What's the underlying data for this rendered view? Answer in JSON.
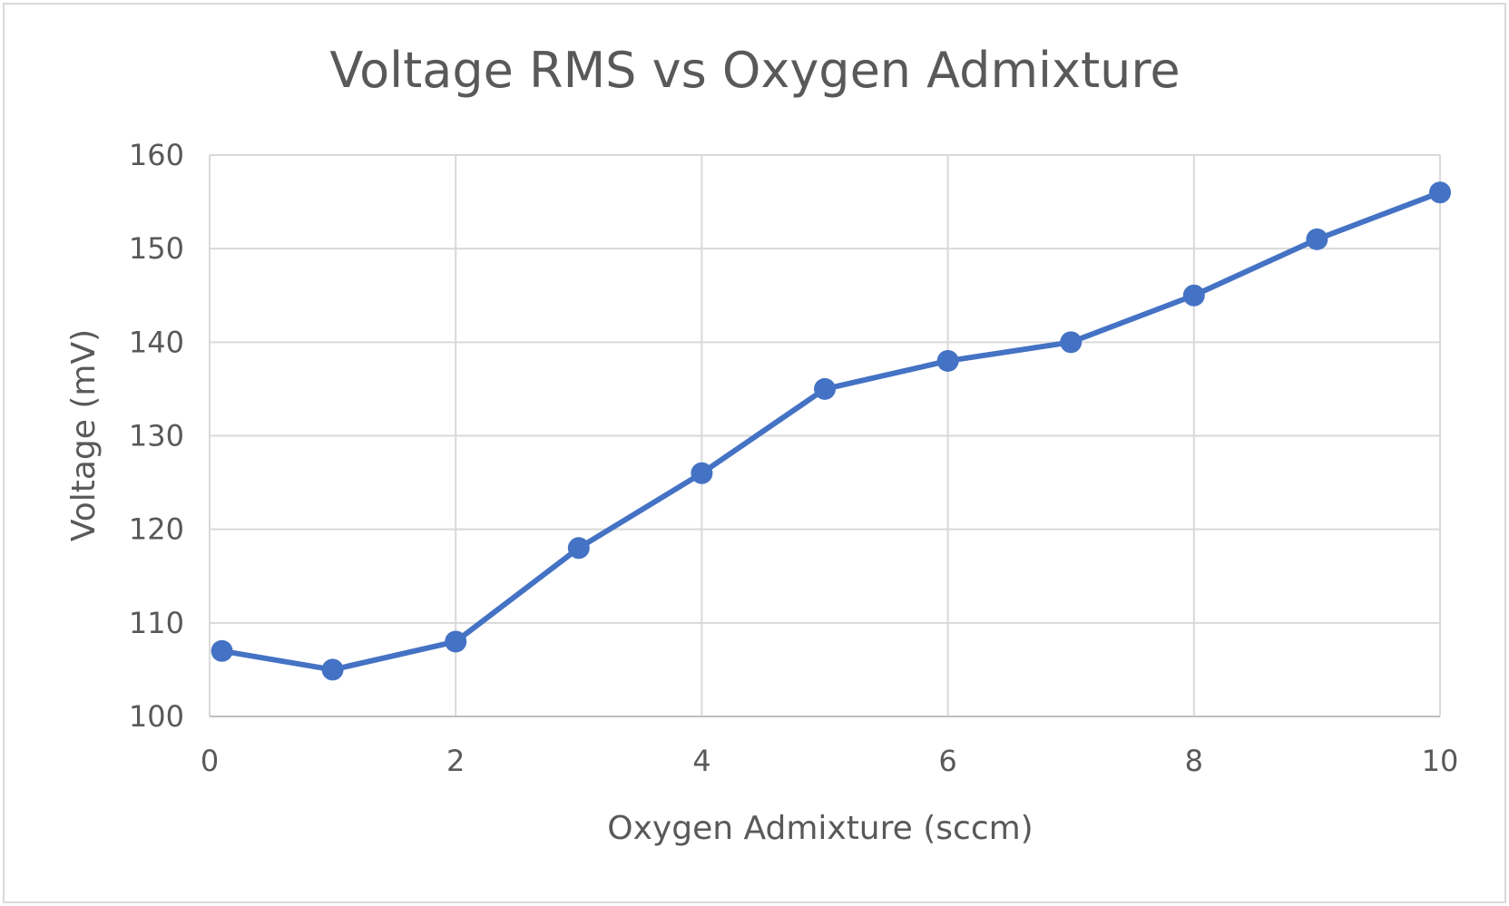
{
  "chart_data": {
    "type": "line",
    "title": "Voltage RMS vs Oxygen Admixture",
    "xlabel": "Oxygen Admixture (sccm)",
    "ylabel": "Voltage (mV)",
    "xlim": [
      0,
      10
    ],
    "ylim": [
      100,
      160
    ],
    "x_ticks": [
      0,
      2,
      4,
      6,
      8,
      10
    ],
    "y_ticks": [
      100,
      110,
      120,
      130,
      140,
      150,
      160
    ],
    "grid": true,
    "legend": "none",
    "series": [
      {
        "color": "#4472C4",
        "points": [
          {
            "x": 0.1,
            "y": 107
          },
          {
            "x": 1,
            "y": 105
          },
          {
            "x": 2,
            "y": 108
          },
          {
            "x": 3,
            "y": 118
          },
          {
            "x": 4,
            "y": 126
          },
          {
            "x": 5,
            "y": 135
          },
          {
            "x": 6,
            "y": 138
          },
          {
            "x": 7,
            "y": 140
          },
          {
            "x": 8,
            "y": 145
          },
          {
            "x": 9,
            "y": 151
          },
          {
            "x": 10,
            "y": 156
          }
        ]
      }
    ]
  }
}
